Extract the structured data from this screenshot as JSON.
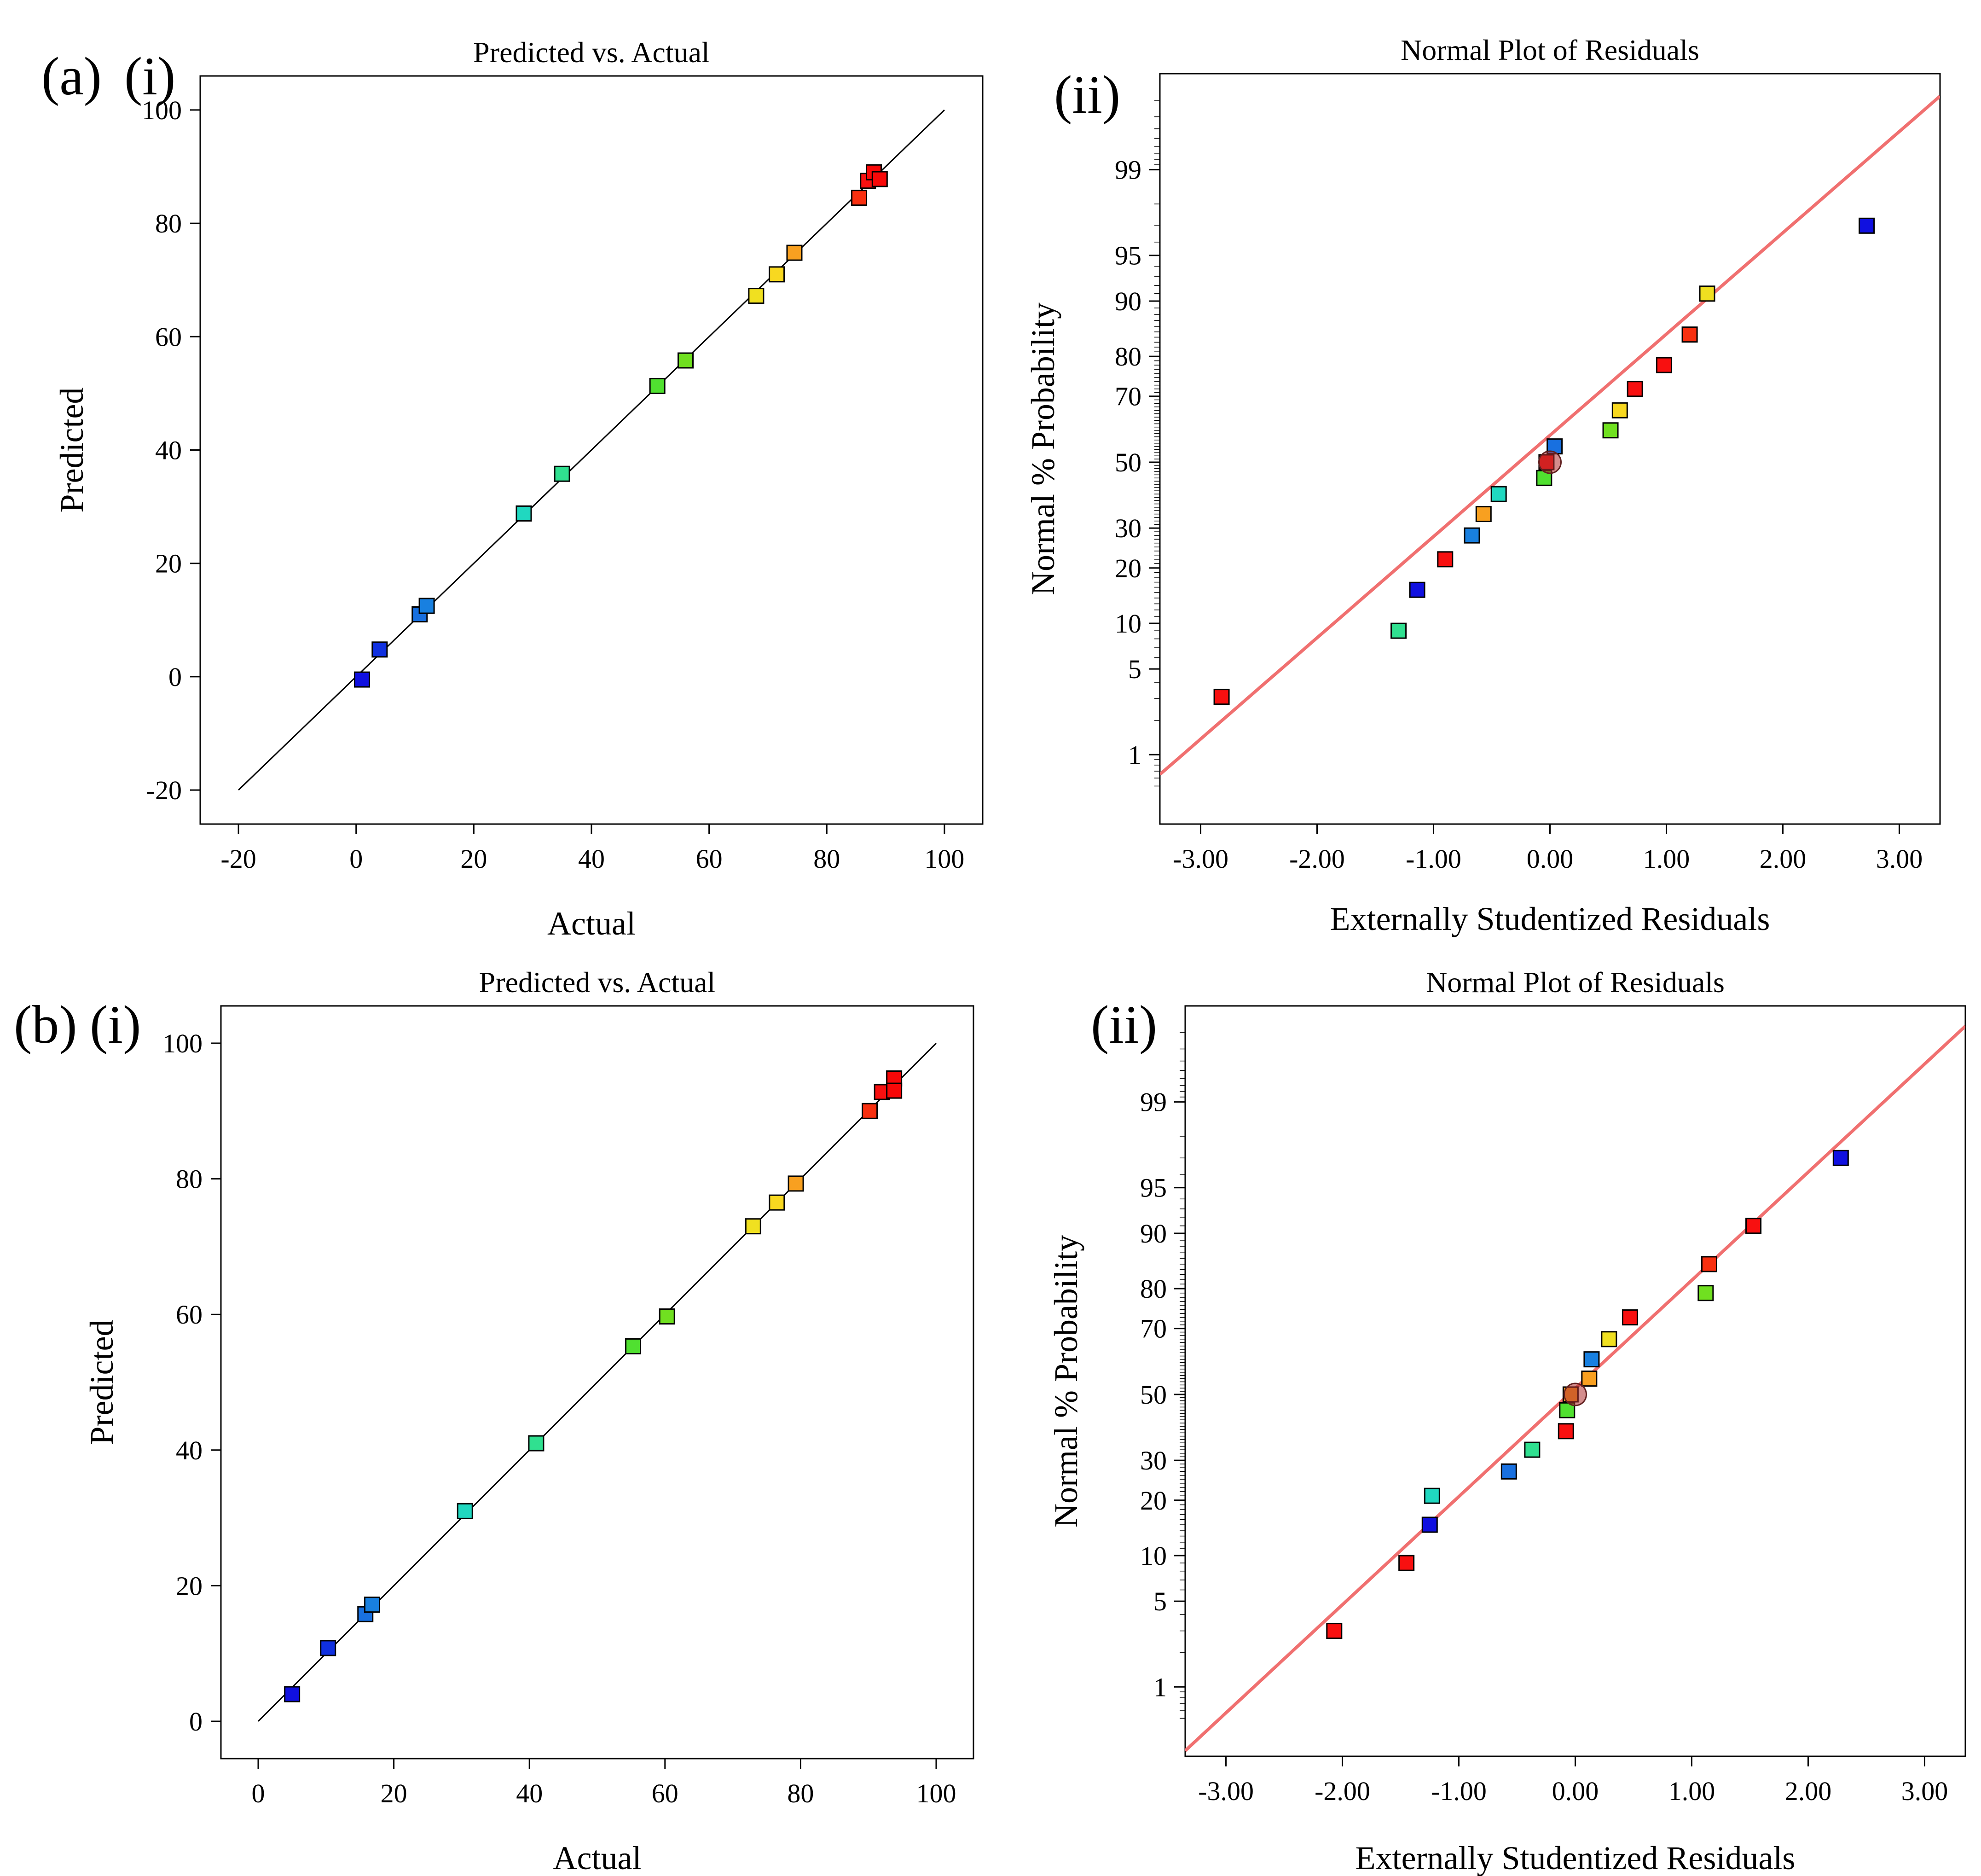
{
  "panel_labels": {
    "a": "(a)",
    "a_i": "(i)",
    "a_ii": "(ii)",
    "b": "(b)",
    "b_i": "(i)",
    "b_ii": "(ii)"
  },
  "chart_data": [
    {
      "id": "a-i",
      "type": "scatter",
      "title": "Predicted vs. Actual",
      "xlabel": "Actual",
      "ylabel": "Predicted",
      "xlim": [
        -26.5,
        106.5
      ],
      "ylim": [
        -26,
        106
      ],
      "xticks": [
        -20,
        0,
        20,
        40,
        60,
        80,
        100
      ],
      "xtick_labels": [
        "-20",
        "0",
        "20",
        "40",
        "60",
        "80",
        "100"
      ],
      "yticks": [
        -20,
        0,
        20,
        40,
        60,
        80,
        100
      ],
      "ytick_labels": [
        "-20",
        "0",
        "20",
        "40",
        "60",
        "80",
        "100"
      ],
      "reference_line": {
        "x": [
          -20,
          100
        ],
        "y": [
          -20,
          100
        ],
        "color": "#000000"
      },
      "points": [
        {
          "x": 1.0,
          "y": -0.5,
          "color": "#1010e0"
        },
        {
          "x": 4.0,
          "y": 4.8,
          "color": "#1030e0"
        },
        {
          "x": 10.8,
          "y": 11.0,
          "color": "#1870e0"
        },
        {
          "x": 12.0,
          "y": 12.5,
          "color": "#1880e0"
        },
        {
          "x": 28.5,
          "y": 28.8,
          "color": "#20d8c0"
        },
        {
          "x": 35.0,
          "y": 35.8,
          "color": "#30e090"
        },
        {
          "x": 51.2,
          "y": 51.3,
          "color": "#50e030"
        },
        {
          "x": 56.0,
          "y": 55.8,
          "color": "#70e020"
        },
        {
          "x": 68.0,
          "y": 67.2,
          "color": "#f0e020"
        },
        {
          "x": 71.5,
          "y": 71.0,
          "color": "#f8d820"
        },
        {
          "x": 74.5,
          "y": 74.8,
          "color": "#f8a020"
        },
        {
          "x": 85.5,
          "y": 84.5,
          "color": "#f83010"
        },
        {
          "x": 87.0,
          "y": 87.5,
          "color": "#f81010"
        },
        {
          "x": 88.0,
          "y": 89.0,
          "color": "#f80808"
        },
        {
          "x": 89.0,
          "y": 87.8,
          "color": "#f80808"
        }
      ]
    },
    {
      "id": "a-ii",
      "type": "scatter",
      "title": "Normal Plot of Residuals",
      "xlabel": "Externally Studentized Residuals",
      "ylabel": "Normal % Probability",
      "xlim": [
        -3.35,
        3.35
      ],
      "yscale": "probit",
      "ylim": [
        0.2,
        99.9
      ],
      "xticks": [
        -3,
        -2,
        -1,
        0,
        1,
        2,
        3
      ],
      "xtick_labels": [
        "-3.00",
        "-2.00",
        "-1.00",
        "0.00",
        "1.00",
        "2.00",
        "3.00"
      ],
      "ytick_labels": [
        "1",
        "5",
        "10",
        "20",
        "30",
        "50",
        "70",
        "80",
        "90",
        "95",
        "99"
      ],
      "fit_line": {
        "x": [
          -3.35,
          3.35
        ],
        "y": [
          0.65,
          99.82
        ],
        "color": "#f07070"
      },
      "center_marker": {
        "x": 0.0,
        "y": 50
      },
      "points": [
        {
          "x": -2.82,
          "y": 3.1,
          "color": "#f81010"
        },
        {
          "x": -1.3,
          "y": 9.0,
          "color": "#30e090"
        },
        {
          "x": -1.14,
          "y": 15.5,
          "color": "#1010e0"
        },
        {
          "x": -0.9,
          "y": 22.0,
          "color": "#f81010"
        },
        {
          "x": -0.67,
          "y": 28.0,
          "color": "#1880e0"
        },
        {
          "x": -0.57,
          "y": 34.0,
          "color": "#f8a020"
        },
        {
          "x": -0.44,
          "y": 40.0,
          "color": "#20d8c0"
        },
        {
          "x": -0.05,
          "y": 45.0,
          "color": "#50e030"
        },
        {
          "x": -0.03,
          "y": 50.0,
          "color": "#f81010"
        },
        {
          "x": 0.04,
          "y": 55.0,
          "color": "#1870e0"
        },
        {
          "x": 0.52,
          "y": 60.0,
          "color": "#70e020"
        },
        {
          "x": 0.6,
          "y": 66.0,
          "color": "#f8d820"
        },
        {
          "x": 0.73,
          "y": 72.0,
          "color": "#f81010"
        },
        {
          "x": 0.98,
          "y": 78.0,
          "color": "#f81010"
        },
        {
          "x": 1.2,
          "y": 84.5,
          "color": "#f83010"
        },
        {
          "x": 1.35,
          "y": 91.0,
          "color": "#f0e020"
        },
        {
          "x": 2.72,
          "y": 97.0,
          "color": "#1010e0"
        }
      ]
    },
    {
      "id": "b-i",
      "type": "scatter",
      "title": "Predicted vs. Actual",
      "xlabel": "Actual",
      "ylabel": "Predicted",
      "xlim": [
        -5.5,
        105.5
      ],
      "ylim": [
        -5.5,
        105.5
      ],
      "xticks": [
        0,
        20,
        40,
        60,
        80,
        100
      ],
      "xtick_labels": [
        "0",
        "20",
        "40",
        "60",
        "80",
        "100"
      ],
      "yticks": [
        0,
        20,
        40,
        60,
        80,
        100
      ],
      "ytick_labels": [
        "0",
        "20",
        "40",
        "60",
        "80",
        "100"
      ],
      "reference_line": {
        "x": [
          0,
          100
        ],
        "y": [
          0,
          100
        ],
        "color": "#000000"
      },
      "points": [
        {
          "x": 5.0,
          "y": 4.0,
          "color": "#1010e0"
        },
        {
          "x": 10.3,
          "y": 10.8,
          "color": "#1030e0"
        },
        {
          "x": 15.8,
          "y": 15.8,
          "color": "#1870e0"
        },
        {
          "x": 16.8,
          "y": 17.2,
          "color": "#1880e0"
        },
        {
          "x": 30.5,
          "y": 31.0,
          "color": "#20d8c0"
        },
        {
          "x": 41.0,
          "y": 41.0,
          "color": "#30e090"
        },
        {
          "x": 55.3,
          "y": 55.3,
          "color": "#50e030"
        },
        {
          "x": 60.3,
          "y": 59.7,
          "color": "#70e020"
        },
        {
          "x": 73.0,
          "y": 73.0,
          "color": "#f0e020"
        },
        {
          "x": 76.5,
          "y": 76.5,
          "color": "#f8d820"
        },
        {
          "x": 79.3,
          "y": 79.3,
          "color": "#f8a020"
        },
        {
          "x": 90.2,
          "y": 90.0,
          "color": "#f83010"
        },
        {
          "x": 92.0,
          "y": 92.8,
          "color": "#f81010"
        },
        {
          "x": 93.8,
          "y": 94.8,
          "color": "#f80808"
        },
        {
          "x": 93.8,
          "y": 93.0,
          "color": "#f80808"
        }
      ]
    },
    {
      "id": "b-ii",
      "type": "scatter",
      "title": "Normal Plot of Residuals",
      "xlabel": "Externally Studentized Residuals",
      "ylabel": "Normal % Probability",
      "xlim": [
        -3.35,
        3.35
      ],
      "yscale": "probit",
      "ylim": [
        0.2,
        99.9
      ],
      "xticks": [
        -3,
        -2,
        -1,
        0,
        1,
        2,
        3
      ],
      "xtick_labels": [
        "-3.00",
        "-2.00",
        "-1.00",
        "0.00",
        "1.00",
        "2.00",
        "3.00"
      ],
      "ytick_labels": [
        "1",
        "5",
        "10",
        "20",
        "30",
        "50",
        "70",
        "80",
        "90",
        "95",
        "99"
      ],
      "fit_line": {
        "x": [
          -3.35,
          3.35
        ],
        "y": [
          0.23,
          99.83
        ],
        "color": "#f07070"
      },
      "center_marker": {
        "x": 0.0,
        "y": 50
      },
      "points": [
        {
          "x": -2.07,
          "y": 3.0,
          "color": "#f81010"
        },
        {
          "x": -1.45,
          "y": 9.0,
          "color": "#f81010"
        },
        {
          "x": -1.25,
          "y": 15.0,
          "color": "#1010e0"
        },
        {
          "x": -1.23,
          "y": 21.0,
          "color": "#20d8c0"
        },
        {
          "x": -0.57,
          "y": 27.0,
          "color": "#1870e0"
        },
        {
          "x": -0.37,
          "y": 33.0,
          "color": "#30e090"
        },
        {
          "x": -0.08,
          "y": 38.5,
          "color": "#f81010"
        },
        {
          "x": -0.07,
          "y": 45.0,
          "color": "#50e030"
        },
        {
          "x": -0.04,
          "y": 50.0,
          "color": "#f8a020"
        },
        {
          "x": 0.12,
          "y": 55.0,
          "color": "#f8a020"
        },
        {
          "x": 0.14,
          "y": 61.0,
          "color": "#1880e0"
        },
        {
          "x": 0.29,
          "y": 67.0,
          "color": "#f0e020"
        },
        {
          "x": 0.47,
          "y": 73.0,
          "color": "#f81010"
        },
        {
          "x": 1.12,
          "y": 79.0,
          "color": "#70e020"
        },
        {
          "x": 1.15,
          "y": 85.0,
          "color": "#f83010"
        },
        {
          "x": 1.53,
          "y": 91.0,
          "color": "#f81010"
        },
        {
          "x": 2.28,
          "y": 97.0,
          "color": "#1010e0"
        }
      ]
    }
  ]
}
